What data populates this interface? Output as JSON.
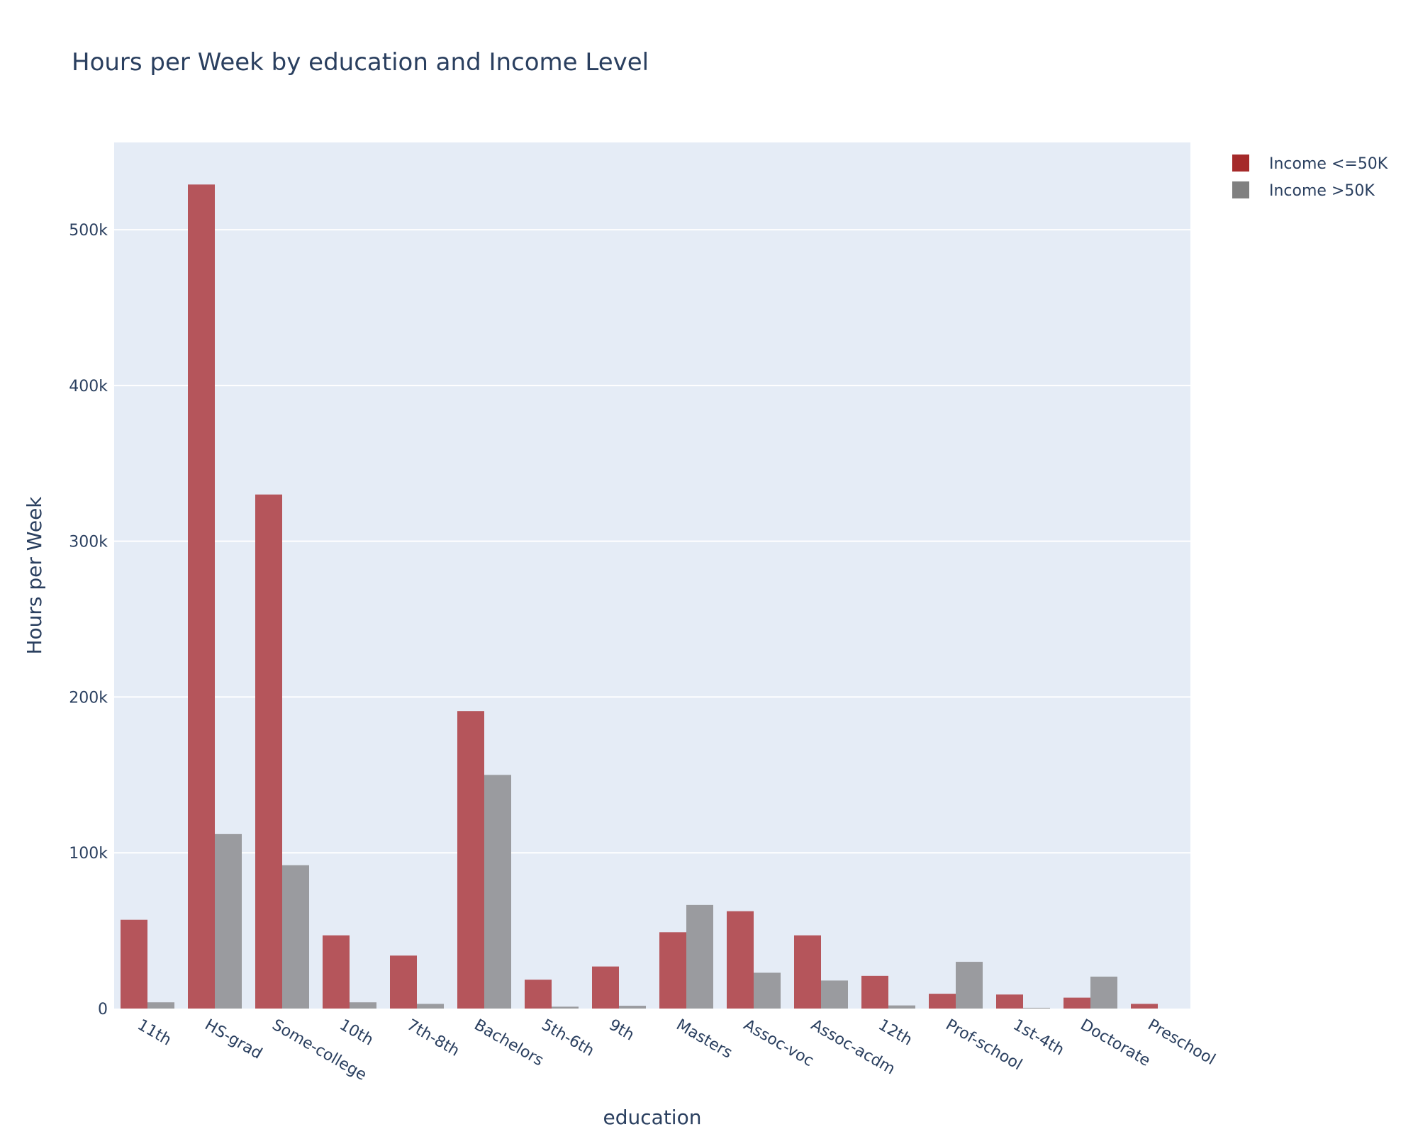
{
  "chart_data": {
    "type": "bar",
    "title": "Hours per Week by education and Income Level",
    "xlabel": "education",
    "ylabel": "Hours per Week",
    "ylim": [
      0,
      556000
    ],
    "yticks": [
      0,
      100000,
      200000,
      300000,
      400000,
      500000
    ],
    "ytick_labels": [
      "0",
      "100k",
      "200k",
      "300k",
      "400k",
      "500k"
    ],
    "grid": true,
    "legend_position": "top-right",
    "categories": [
      "11th",
      "HS-grad",
      "Some-college",
      "10th",
      "7th-8th",
      "Bachelors",
      "5th-6th",
      "9th",
      "Masters",
      "Assoc-voc",
      "Assoc-acdm",
      "12th",
      "Prof-school",
      "1st-4th",
      "Doctorate",
      "Preschool"
    ],
    "series": [
      {
        "name": "Income <=50K",
        "color": "#b5555b",
        "legend_color": "#a52a2a",
        "values": [
          57000,
          529000,
          330000,
          47000,
          34000,
          191000,
          18500,
          27000,
          49000,
          62500,
          47000,
          21000,
          9500,
          9000,
          7000,
          3000
        ]
      },
      {
        "name": "Income >50K",
        "color": "#9a9b9f",
        "legend_color": "#808080",
        "values": [
          4000,
          112000,
          92000,
          4000,
          3000,
          150000,
          1200,
          1800,
          66500,
          23000,
          18000,
          2000,
          30000,
          500,
          20500,
          0
        ]
      }
    ]
  }
}
